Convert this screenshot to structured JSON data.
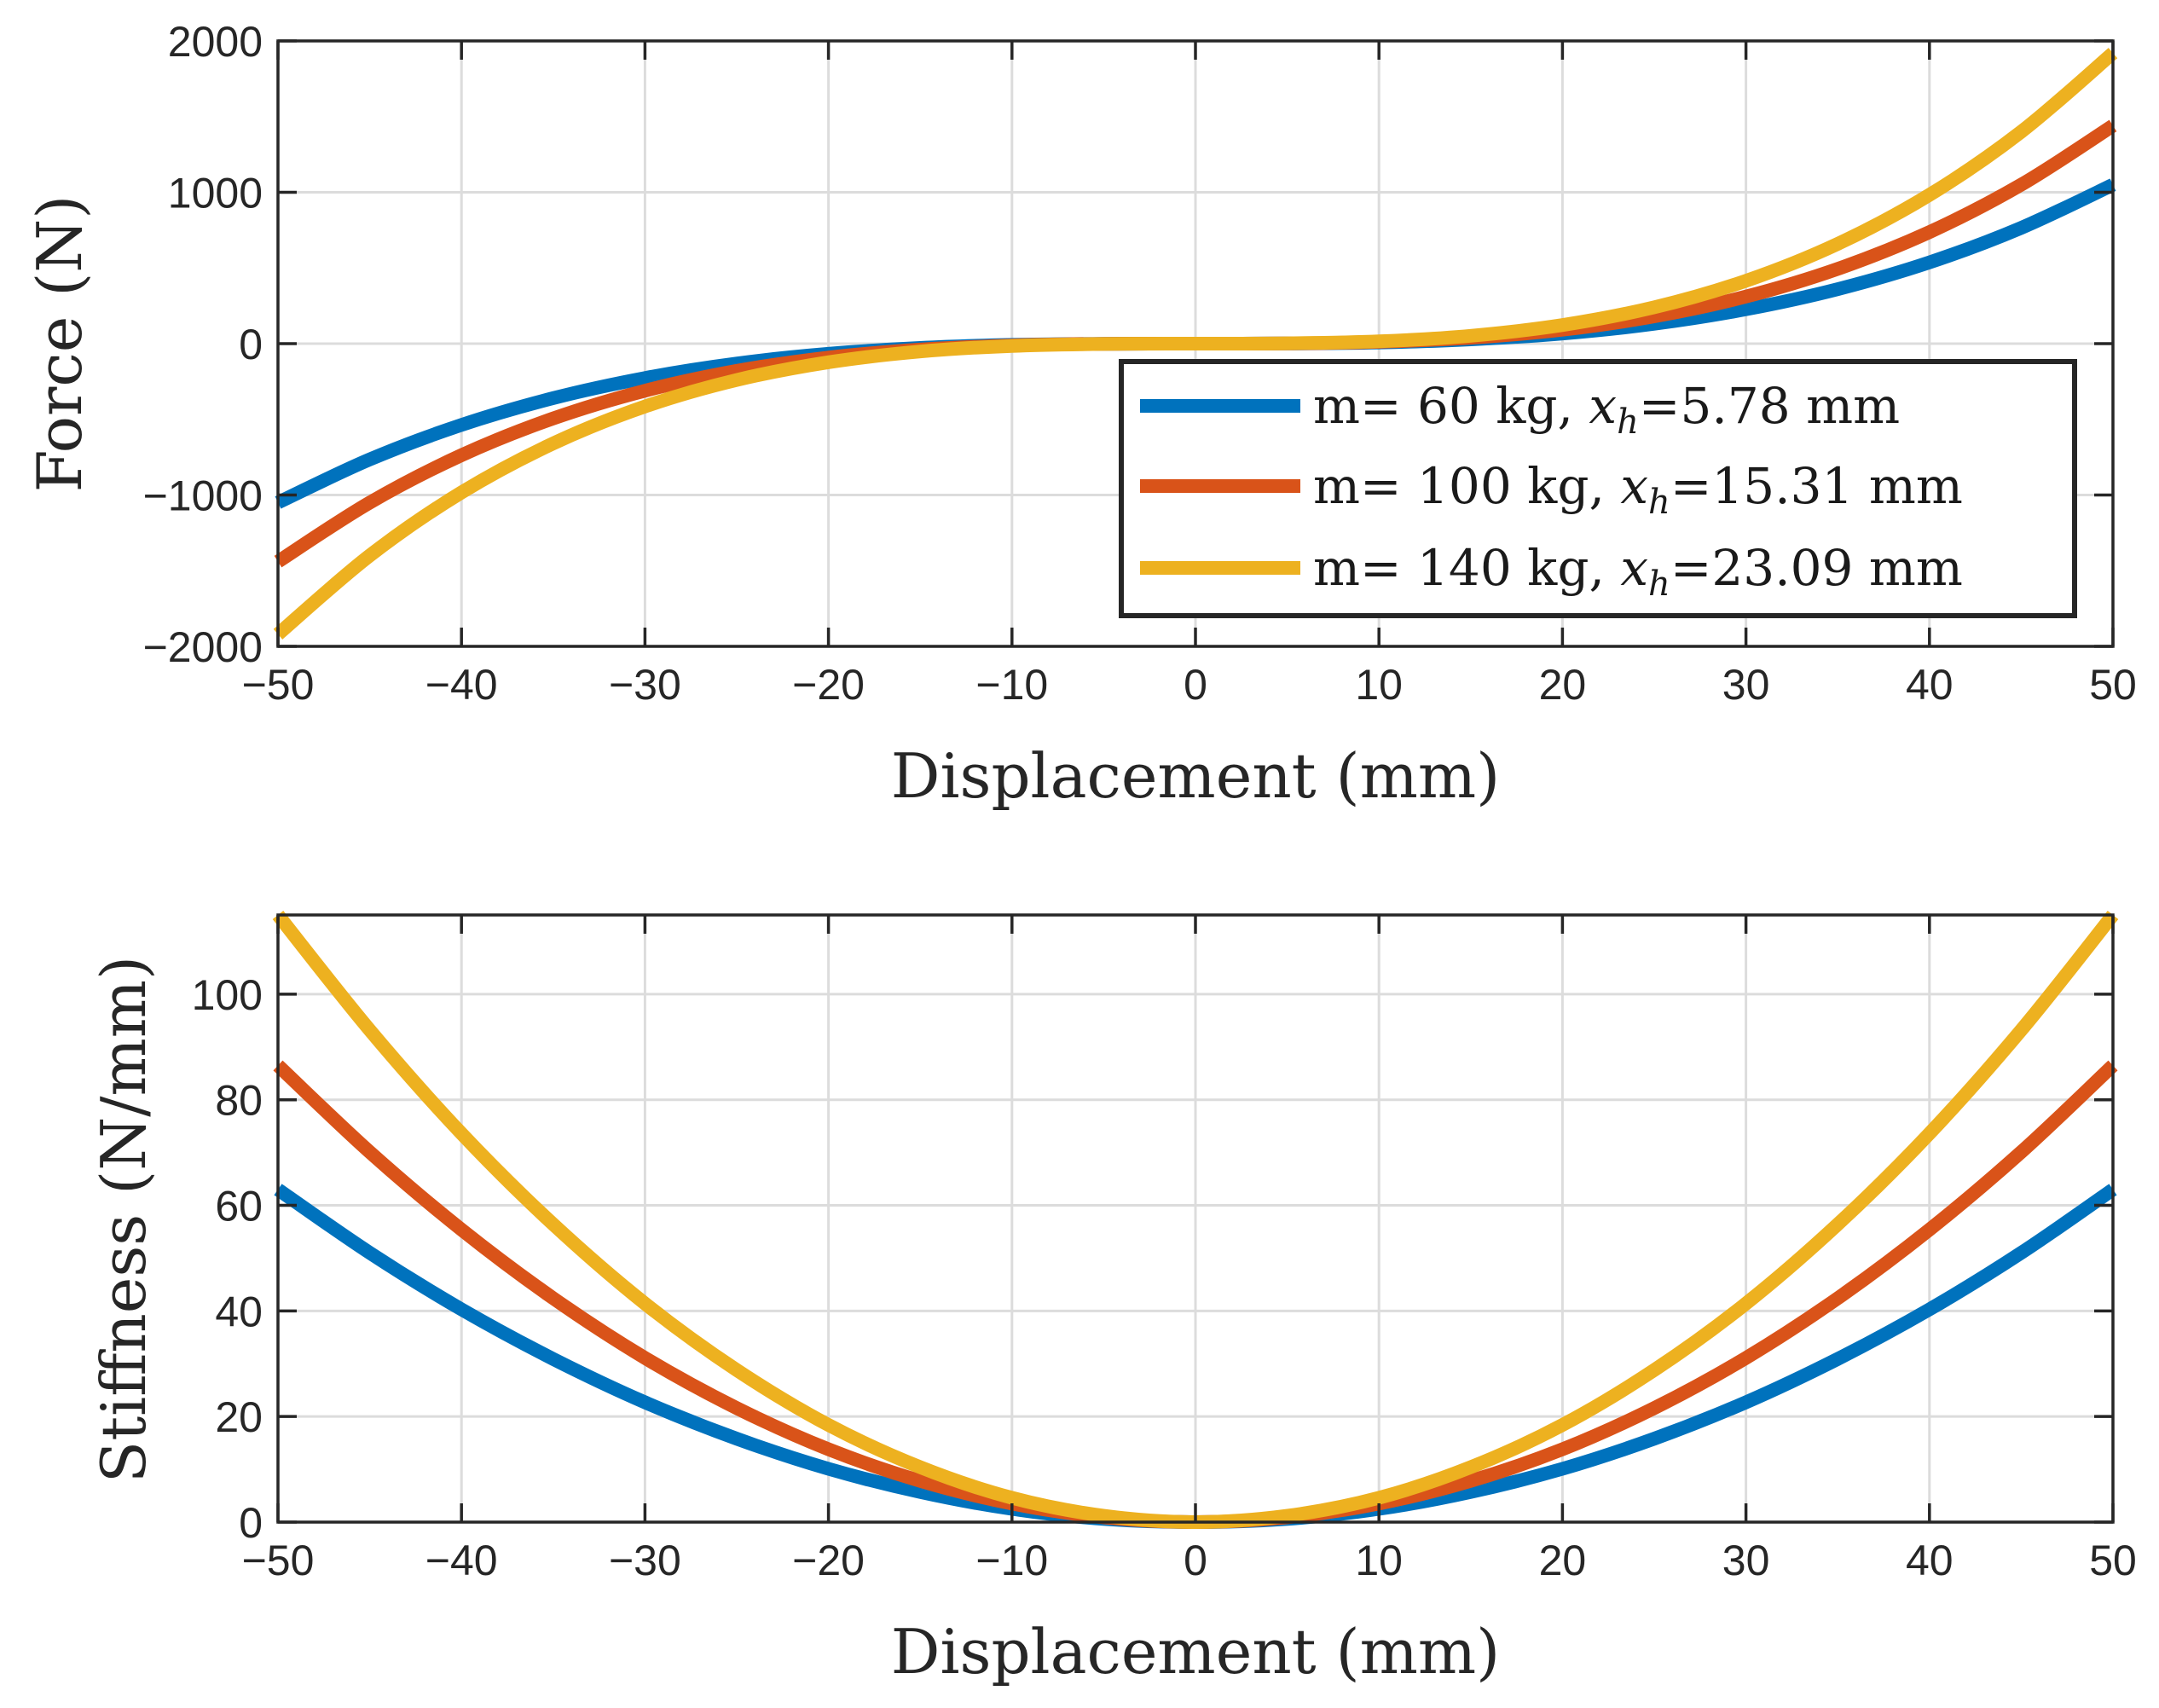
{
  "chart_data": [
    {
      "type": "line",
      "title": "",
      "xlabel": "Displacement (mm)",
      "ylabel": "Force (N)",
      "xlim": [
        -50,
        50
      ],
      "ylim": [
        -2000,
        2000
      ],
      "xticks": [
        -50,
        -40,
        -30,
        -20,
        -10,
        0,
        10,
        20,
        30,
        40,
        50
      ],
      "xtick_labels": [
        "−50",
        "−40",
        "−30",
        "−20",
        "−10",
        "0",
        "10",
        "20",
        "30",
        "40",
        "50"
      ],
      "yticks": [
        -2000,
        -1000,
        0,
        1000,
        2000
      ],
      "ytick_labels": [
        "−2000",
        "−1000",
        "0",
        "1000",
        "2000"
      ],
      "grid": true,
      "legend_position": "bottom-right",
      "x": [
        -50,
        -45,
        -40,
        -35,
        -30,
        -25,
        -20,
        -15,
        -10,
        -5,
        0,
        5,
        10,
        15,
        20,
        25,
        30,
        35,
        40,
        45,
        50
      ],
      "series": [
        {
          "name": "m= 60 kg, x_h=5.78 mm",
          "legend_prefix": "m= 60 kg, ",
          "legend_var": "x",
          "legend_sub": "h",
          "legend_suffix": "=5.78 mm",
          "color": "#0072BD",
          "values": [
            -1050,
            -765,
            -537,
            -360,
            -227,
            -131,
            -67,
            -28,
            -8,
            -1,
            0,
            1,
            8,
            28,
            67,
            131,
            227,
            360,
            537,
            765,
            1050
          ]
        },
        {
          "name": "m= 100 kg, x_h=15.31 mm",
          "legend_prefix": "m= 100 kg, ",
          "legend_var": "x",
          "legend_sub": "h",
          "legend_suffix": "=15.31 mm",
          "color": "#D95319",
          "values": [
            -1440,
            -1050,
            -737,
            -494,
            -311,
            -180,
            -92,
            -39,
            -12,
            -1,
            0,
            1,
            12,
            39,
            92,
            180,
            311,
            494,
            737,
            1050,
            1440
          ]
        },
        {
          "name": "m= 140 kg, x_h=23.09 mm",
          "legend_prefix": "m= 140 kg, ",
          "legend_var": "x",
          "legend_sub": "h",
          "legend_suffix": "=23.09 mm",
          "color": "#EDB120",
          "values": [
            -1920,
            -1400,
            -983,
            -659,
            -415,
            -240,
            -123,
            -52,
            -15,
            -2,
            0,
            2,
            15,
            52,
            123,
            240,
            415,
            659,
            983,
            1400,
            1920
          ]
        }
      ]
    },
    {
      "type": "line",
      "title": "",
      "xlabel": "Displacement (mm)",
      "ylabel": "Stiffness (N/mm)",
      "xlim": [
        -50,
        50
      ],
      "ylim": [
        0,
        115
      ],
      "xticks": [
        -50,
        -40,
        -30,
        -20,
        -10,
        0,
        10,
        20,
        30,
        40,
        50
      ],
      "xtick_labels": [
        "−50",
        "−40",
        "−30",
        "−20",
        "−10",
        "0",
        "10",
        "20",
        "30",
        "40",
        "50"
      ],
      "yticks": [
        0,
        20,
        40,
        60,
        80,
        100
      ],
      "ytick_labels": [
        "0",
        "20",
        "40",
        "60",
        "80",
        "100"
      ],
      "grid": true,
      "x": [
        -50,
        -45,
        -40,
        -35,
        -30,
        -25,
        -20,
        -15,
        -10,
        -5,
        0,
        5,
        10,
        15,
        20,
        25,
        30,
        35,
        40,
        45,
        50
      ],
      "series": [
        {
          "name": "m= 60 kg",
          "color": "#0072BD",
          "values": [
            63,
            51,
            40.3,
            30.9,
            22.7,
            15.8,
            10.1,
            5.7,
            2.5,
            0.6,
            0,
            0.6,
            2.5,
            5.7,
            10.1,
            15.8,
            22.7,
            30.9,
            40.3,
            51,
            63
          ]
        },
        {
          "name": "m= 100 kg",
          "color": "#D95319",
          "values": [
            86.5,
            70.1,
            55.4,
            42.4,
            31.1,
            21.6,
            13.8,
            7.8,
            3.5,
            0.9,
            0,
            0.9,
            3.5,
            7.8,
            13.8,
            21.6,
            31.1,
            42.4,
            55.4,
            70.1,
            86.5
          ]
        },
        {
          "name": "m= 140 kg",
          "color": "#EDB120",
          "values": [
            115,
            93.2,
            73.6,
            56.4,
            41.4,
            28.8,
            18.4,
            10.4,
            4.6,
            1.2,
            0,
            1.2,
            4.6,
            10.4,
            18.4,
            28.8,
            41.4,
            56.4,
            73.6,
            93.2,
            115
          ]
        }
      ]
    }
  ]
}
